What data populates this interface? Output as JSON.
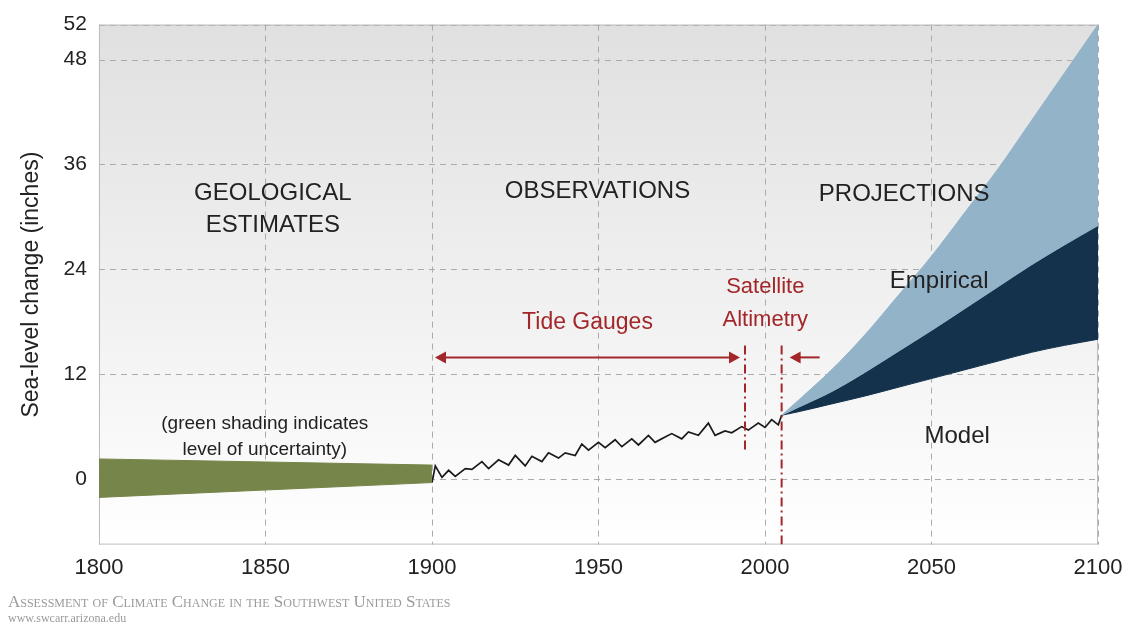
{
  "chart_data": {
    "type": "line",
    "ylabel": "Sea-level change (inches)",
    "xlim": [
      1800,
      2100
    ],
    "xticks": [
      1800,
      1850,
      1900,
      1950,
      2000,
      2050,
      2100
    ],
    "ylim": [
      -7.5,
      52
    ],
    "yticks": [
      0,
      12,
      24,
      36,
      48,
      52
    ],
    "grid": true,
    "series": [
      {
        "name": "GEOLOGICAL ESTIMATES",
        "type": "area",
        "color": "#76854a",
        "x": [
          1800,
          1900
        ],
        "values": [
          2.3,
          1.6
        ],
        "lower": [
          -2.1,
          -0.4
        ]
      },
      {
        "name": "OBSERVATIONS",
        "type": "line",
        "color": "#1a1a1a",
        "x": [
          1900,
          1901,
          1903,
          1905,
          1907,
          1910,
          1912,
          1915,
          1917,
          1920,
          1923,
          1925,
          1928,
          1930,
          1933,
          1935,
          1938,
          1940,
          1943,
          1945,
          1947,
          1950,
          1952,
          1955,
          1957,
          1960,
          1962,
          1965,
          1967,
          1970,
          1972,
          1975,
          1977,
          1980,
          1983,
          1985,
          1988,
          1990,
          1993,
          1995,
          1998,
          2000,
          2002,
          2004,
          2005
        ],
        "values": [
          -0.4,
          1.5,
          0.2,
          1.0,
          0.3,
          1.2,
          1.1,
          2.0,
          1.2,
          2.2,
          1.6,
          2.7,
          1.5,
          2.6,
          2.0,
          3.0,
          2.4,
          3.0,
          2.7,
          4.0,
          3.3,
          4.2,
          3.6,
          4.5,
          3.7,
          4.6,
          3.9,
          5.0,
          4.2,
          4.8,
          5.2,
          4.6,
          5.4,
          5.0,
          6.4,
          5.0,
          5.5,
          5.3,
          6.0,
          5.6,
          6.4,
          5.9,
          6.8,
          6.2,
          7.3
        ]
      },
      {
        "name": "Empirical",
        "type": "area",
        "color": "#93b3c9",
        "x": [
          2005,
          2010,
          2020,
          2030,
          2040,
          2050,
          2060,
          2070,
          2080,
          2090,
          2100
        ],
        "values": [
          7.3,
          9.0,
          12.5,
          16.5,
          21,
          25.5,
          30.5,
          35.5,
          41,
          46.5,
          52
        ],
        "lower": [
          7.3,
          8.2,
          10,
          12.2,
          14.6,
          17,
          19.5,
          22,
          24.5,
          26.8,
          29
        ]
      },
      {
        "name": "Model",
        "type": "area",
        "color": "#14324b",
        "x": [
          2005,
          2010,
          2020,
          2030,
          2040,
          2050,
          2060,
          2070,
          2080,
          2090,
          2100
        ],
        "values": [
          7.3,
          8.2,
          10,
          12.2,
          14.6,
          17,
          19.5,
          22,
          24.5,
          26.8,
          29
        ],
        "lower": [
          7.3,
          7.7,
          8.6,
          9.5,
          10.5,
          11.5,
          12.5,
          13.5,
          14.5,
          15.3,
          16
        ]
      }
    ],
    "annotations": [
      {
        "text": "PROJECTIONS",
        "color": "#222222"
      },
      {
        "text": [
          "(green shading indicates",
          "level of uncertainty)"
        ],
        "color": "#222222"
      },
      {
        "text": "Tide Gauges",
        "x": [
          1900,
          1994
        ],
        "color": "#a3262a"
      },
      {
        "text": [
          "Satellite",
          "Altimetry"
        ],
        "x": [
          2005
        ],
        "color": "#a3262a"
      }
    ],
    "vlines": {
      "x": [
        1994,
        2005
      ],
      "color": "#a3262a"
    },
    "source": [
      "Assessment of Climate Change in the Southwest United States",
      "www.swcarr.arizona.edu"
    ]
  }
}
